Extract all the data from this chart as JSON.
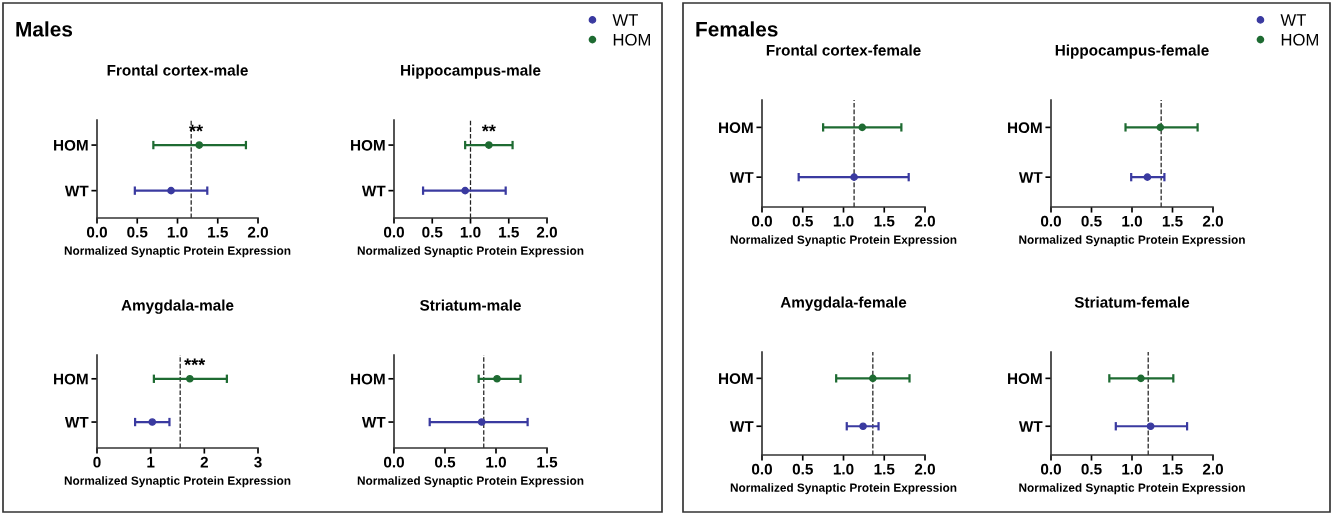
{
  "chart_data": [
    {
      "type": "scatter",
      "orientation": "horizontal",
      "title": "Frontal cortex-male",
      "xlabel": "Normalized Synaptic Protein Expression",
      "categories": [
        "HOM",
        "WT"
      ],
      "xlim": [
        0,
        2
      ],
      "xticks": [
        {
          "value": 0,
          "label": "0.0"
        },
        {
          "value": 0.5,
          "label": "0.5"
        },
        {
          "value": 1,
          "label": "1.0"
        },
        {
          "value": 1.5,
          "label": "1.5"
        },
        {
          "value": 2,
          "label": "2.0"
        }
      ],
      "marker": "circle",
      "legend": "top right",
      "series": [
        {
          "name": "WT",
          "color": "#3a3aa0",
          "values": [
            null,
            0.92
          ],
          "errors": [
            null,
            [
              0.47,
              1.37
            ]
          ]
        },
        {
          "name": "HOM",
          "color": "#1e6b32",
          "values": [
            1.27,
            null
          ],
          "errors": [
            [
              0.7,
              1.85
            ],
            null
          ]
        }
      ],
      "ref_lines": [
        {
          "axis": "x",
          "value": 1.17,
          "line_style": "dashed"
        }
      ],
      "annotations": [
        "Males",
        {
          "text": "**",
          "x": 1.23,
          "y": "HOM"
        }
      ]
    },
    {
      "type": "scatter",
      "orientation": "horizontal",
      "title": "Hippocampus-male",
      "xlabel": "Normalized Synaptic Protein Expression",
      "categories": [
        "HOM",
        "WT"
      ],
      "xlim": [
        0,
        2
      ],
      "xticks": [
        {
          "value": 0,
          "label": "0.0"
        },
        {
          "value": 0.5,
          "label": "0.5"
        },
        {
          "value": 1,
          "label": "1.0"
        },
        {
          "value": 1.5,
          "label": "1.5"
        },
        {
          "value": 2,
          "label": "2.0"
        }
      ],
      "marker": "circle",
      "series": [
        {
          "color": "#3a3aa0",
          "values": [
            null,
            0.93
          ],
          "errors": [
            null,
            [
              0.38,
              1.46
            ]
          ]
        },
        {
          "color": "#1e6b32",
          "values": [
            1.24,
            null
          ],
          "errors": [
            [
              0.93,
              1.55
            ],
            null
          ]
        }
      ],
      "ref_lines": [
        {
          "axis": "x",
          "value": 1.0,
          "line_style": "dashed"
        }
      ],
      "annotations": [
        {
          "text": "**",
          "x": 1.24,
          "y": "HOM"
        }
      ]
    },
    {
      "type": "scatter",
      "orientation": "horizontal",
      "title": "Amygdala-male",
      "xlabel": "Normalized Synaptic Protein Expression",
      "categories": [
        "HOM",
        "WT"
      ],
      "xlim": [
        0,
        3
      ],
      "xticks": [
        0,
        1,
        2,
        3
      ],
      "marker": "circle",
      "series": [
        {
          "color": "#3a3aa0",
          "values": [
            null,
            1.03
          ],
          "errors": [
            null,
            [
              0.71,
              1.35
            ]
          ]
        },
        {
          "color": "#1e6b32",
          "values": [
            1.73,
            null
          ],
          "errors": [
            [
              1.06,
              2.42
            ],
            null
          ]
        }
      ],
      "ref_lines": [
        {
          "axis": "x",
          "value": 1.55,
          "line_style": "dashed"
        }
      ],
      "annotations": [
        {
          "text": "***",
          "x": 1.82,
          "y": "HOM"
        }
      ]
    },
    {
      "type": "scatter",
      "orientation": "horizontal",
      "title": "Striatum-male",
      "xlabel": "Normalized Synaptic Protein Expression",
      "categories": [
        "HOM",
        "WT"
      ],
      "xlim": [
        0,
        1.5
      ],
      "xticks": [
        {
          "value": 0,
          "label": "0.0"
        },
        {
          "value": 0.5,
          "label": "0.5"
        },
        {
          "value": 1,
          "label": "1.0"
        },
        {
          "value": 1.5,
          "label": "1.5"
        }
      ],
      "marker": "circle",
      "series": [
        {
          "color": "#3a3aa0",
          "values": [
            null,
            0.86
          ],
          "errors": [
            null,
            [
              0.35,
              1.31
            ]
          ]
        },
        {
          "color": "#1e6b32",
          "values": [
            1.01,
            null
          ],
          "errors": [
            [
              0.83,
              1.24
            ],
            null
          ]
        }
      ],
      "ref_lines": [
        {
          "axis": "x",
          "value": 0.88,
          "line_style": "dashed"
        }
      ]
    },
    {
      "type": "scatter",
      "orientation": "horizontal",
      "title": "Frontal cortex-female",
      "xlabel": "Normalized Synaptic Protein Expression",
      "categories": [
        "HOM",
        "WT"
      ],
      "xlim": [
        0,
        2
      ],
      "xticks": [
        {
          "value": 0,
          "label": "0.0"
        },
        {
          "value": 0.5,
          "label": "0.5"
        },
        {
          "value": 1,
          "label": "1.0"
        },
        {
          "value": 1.5,
          "label": "1.5"
        },
        {
          "value": 2,
          "label": "2.0"
        }
      ],
      "marker": "circle",
      "legend": "top right",
      "series": [
        {
          "name": "WT",
          "color": "#3a3aa0",
          "values": [
            null,
            1.13
          ],
          "errors": [
            null,
            [
              0.45,
              1.8
            ]
          ]
        },
        {
          "name": "HOM",
          "color": "#1e6b32",
          "values": [
            1.23,
            null
          ],
          "errors": [
            [
              0.75,
              1.71
            ],
            null
          ]
        }
      ],
      "ref_lines": [
        {
          "axis": "x",
          "value": 1.13,
          "line_style": "dashed"
        }
      ],
      "annotations": [
        "Females"
      ]
    },
    {
      "type": "scatter",
      "orientation": "horizontal",
      "title": "Hippocampus-female",
      "xlabel": "Normalized Synaptic Protein Expression",
      "categories": [
        "HOM",
        "WT"
      ],
      "xlim": [
        0,
        2
      ],
      "xticks": [
        {
          "value": 0,
          "label": "0.0"
        },
        {
          "value": 0.5,
          "label": "0.5"
        },
        {
          "value": 1,
          "label": "1.0"
        },
        {
          "value": 1.5,
          "label": "1.5"
        },
        {
          "value": 2,
          "label": "2.0"
        }
      ],
      "marker": "circle",
      "series": [
        {
          "color": "#3a3aa0",
          "values": [
            null,
            1.19
          ],
          "errors": [
            null,
            [
              0.99,
              1.4
            ]
          ]
        },
        {
          "color": "#1e6b32",
          "values": [
            1.35,
            null
          ],
          "errors": [
            [
              0.92,
              1.81
            ],
            null
          ]
        }
      ],
      "ref_lines": [
        {
          "axis": "x",
          "value": 1.36,
          "line_style": "dashed"
        }
      ]
    },
    {
      "type": "scatter",
      "orientation": "horizontal",
      "title": "Amygdala-female",
      "xlabel": "Normalized Synaptic Protein Expression",
      "categories": [
        "HOM",
        "WT"
      ],
      "xlim": [
        0,
        2
      ],
      "xticks": [
        {
          "value": 0,
          "label": "0.0"
        },
        {
          "value": 0.5,
          "label": "0.5"
        },
        {
          "value": 1,
          "label": "1.0"
        },
        {
          "value": 1.5,
          "label": "1.5"
        },
        {
          "value": 2,
          "label": "2.0"
        }
      ],
      "marker": "circle",
      "series": [
        {
          "color": "#3a3aa0",
          "values": [
            null,
            1.24
          ],
          "errors": [
            null,
            [
              1.04,
              1.43
            ]
          ]
        },
        {
          "color": "#1e6b32",
          "values": [
            1.36,
            null
          ],
          "errors": [
            [
              0.91,
              1.81
            ],
            null
          ]
        }
      ],
      "ref_lines": [
        {
          "axis": "x",
          "value": 1.36,
          "line_style": "dashed"
        }
      ]
    },
    {
      "type": "scatter",
      "orientation": "horizontal",
      "title": "Striatum-female",
      "xlabel": "Normalized Synaptic Protein Expression",
      "categories": [
        "HOM",
        "WT"
      ],
      "xlim": [
        0,
        2
      ],
      "xticks": [
        {
          "value": 0,
          "label": "0.0"
        },
        {
          "value": 0.5,
          "label": "0.5"
        },
        {
          "value": 1,
          "label": "1.0"
        },
        {
          "value": 1.5,
          "label": "1.5"
        },
        {
          "value": 2,
          "label": "2.0"
        }
      ],
      "marker": "circle",
      "series": [
        {
          "color": "#3a3aa0",
          "values": [
            null,
            1.23
          ],
          "errors": [
            null,
            [
              0.8,
              1.68
            ]
          ]
        },
        {
          "color": "#1e6b32",
          "values": [
            1.11,
            null
          ],
          "errors": [
            [
              0.72,
              1.51
            ],
            null
          ]
        }
      ],
      "ref_lines": [
        {
          "axis": "x",
          "value": 1.2,
          "line_style": "dashed"
        }
      ]
    }
  ]
}
